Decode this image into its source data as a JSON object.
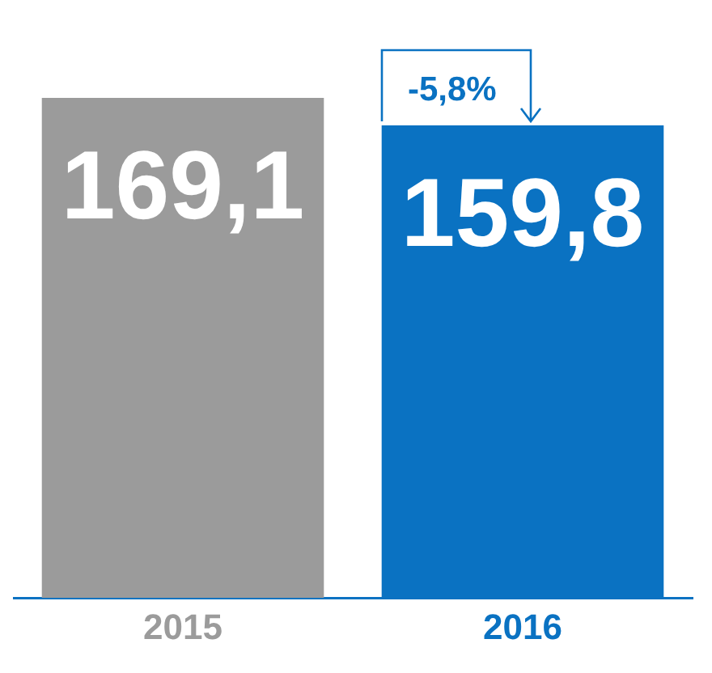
{
  "chart_data": {
    "type": "bar",
    "categories": [
      "2015",
      "2016"
    ],
    "values": [
      169.1,
      159.8
    ],
    "colors": [
      "#9b9b9b",
      "#0a72c2"
    ],
    "value_labels": [
      "169,1",
      "159,8"
    ],
    "annotations": [
      "-5,8%"
    ],
    "grid": false,
    "legend": false
  }
}
